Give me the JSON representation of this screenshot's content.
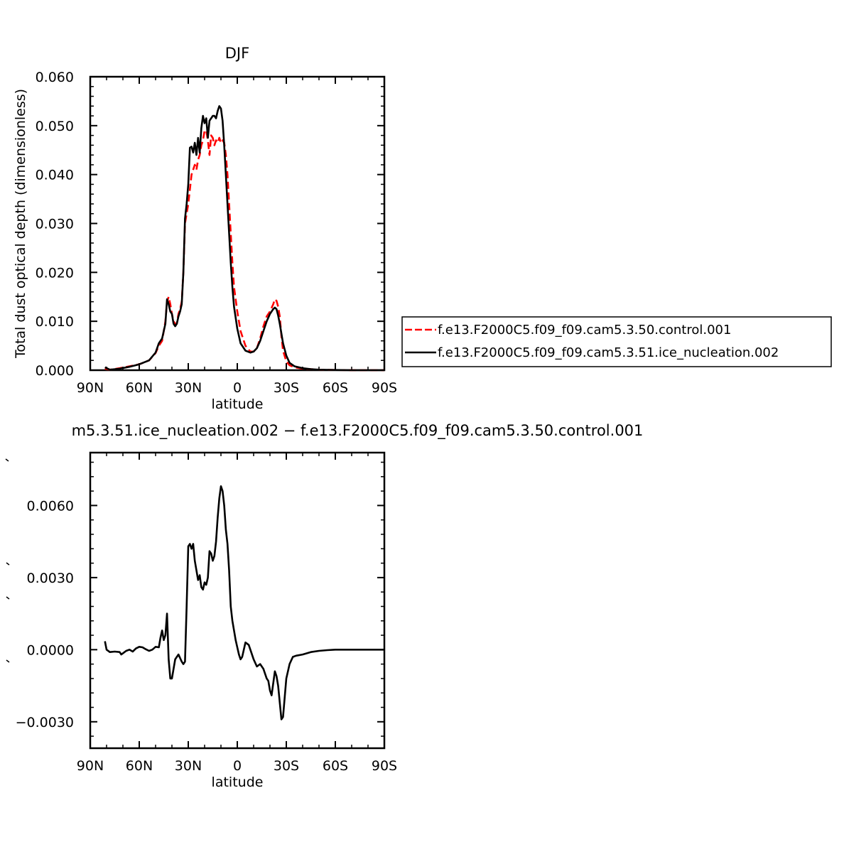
{
  "chart_data": [
    {
      "type": "line",
      "title": "DJF",
      "xlabel": "latitude",
      "ylabel": "Total dust optical depth (dimensionless)",
      "xlim": [
        90,
        -90
      ],
      "ylim": [
        0.0,
        0.06
      ],
      "x_ticks": [
        90,
        60,
        30,
        0,
        -30,
        -60,
        -90
      ],
      "x_tick_labels": [
        "90N",
        "60N",
        "30N",
        "0",
        "30S",
        "60S",
        "90S"
      ],
      "y_ticks": [
        0.0,
        0.01,
        0.02,
        0.03,
        0.04,
        0.05,
        0.06
      ],
      "y_tick_labels": [
        "0.000",
        "0.010",
        "0.020",
        "0.030",
        "0.040",
        "0.050",
        "0.060"
      ],
      "legend_position": "right",
      "series": [
        {
          "name": "f.e13.F2000C5.f09_f09.cam5.3.50.control.001",
          "color": "#ff0000",
          "dash": "dashed",
          "x": [
            81,
            78,
            72,
            66,
            60,
            54,
            50,
            48,
            46,
            44,
            43,
            42,
            41,
            40,
            39,
            38,
            37,
            36,
            35,
            34,
            33,
            32,
            31,
            30,
            28,
            26,
            25,
            24,
            23,
            22,
            21,
            20,
            19,
            18,
            17,
            16,
            15,
            14,
            13,
            12,
            11,
            10,
            9,
            8,
            7,
            6,
            5,
            4,
            3,
            2,
            0,
            -2,
            -5,
            -8,
            -10,
            -12,
            -14,
            -16,
            -18,
            -20,
            -22,
            -23,
            -24,
            -25,
            -26,
            -27,
            -28,
            -30,
            -32,
            -35,
            -40,
            -45,
            -50,
            -60,
            -70,
            -80,
            -90
          ],
          "y": [
            0.0003,
            0.0001,
            0.0004,
            0.0008,
            0.0012,
            0.002,
            0.0035,
            0.005,
            0.006,
            0.01,
            0.014,
            0.015,
            0.0135,
            0.0115,
            0.01,
            0.0095,
            0.0095,
            0.0115,
            0.0125,
            0.014,
            0.02,
            0.03,
            0.032,
            0.034,
            0.04,
            0.042,
            0.041,
            0.043,
            0.044,
            0.046,
            0.047,
            0.049,
            0.049,
            0.047,
            0.044,
            0.048,
            0.0475,
            0.046,
            0.047,
            0.0465,
            0.0475,
            0.0465,
            0.047,
            0.0465,
            0.044,
            0.04,
            0.034,
            0.028,
            0.022,
            0.017,
            0.012,
            0.008,
            0.005,
            0.0038,
            0.0038,
            0.0045,
            0.0065,
            0.009,
            0.011,
            0.012,
            0.0135,
            0.0145,
            0.0142,
            0.013,
            0.011,
            0.007,
            0.004,
            0.0018,
            0.001,
            0.0006,
            0.0003,
            0.0002,
            0.0001,
            5e-05,
            0.0,
            0.0,
            0.0
          ]
        },
        {
          "name": "f.e13.F2000C5.f09_f09.cam5.3.51.ice_nucleation.002",
          "color": "#000000",
          "dash": "solid",
          "x": [
            81,
            78,
            72,
            66,
            60,
            54,
            50,
            48,
            46,
            44,
            43,
            42,
            41,
            40,
            39,
            38,
            37,
            36,
            35,
            34,
            33,
            32,
            31,
            30,
            29,
            28,
            27,
            26,
            25,
            24,
            23,
            22,
            21,
            20,
            19,
            18,
            17,
            16,
            15,
            14,
            13,
            12,
            11,
            10,
            9,
            8,
            7,
            6,
            5,
            4,
            3,
            2,
            0,
            -2,
            -5,
            -8,
            -10,
            -12,
            -14,
            -16,
            -18,
            -20,
            -22,
            -23,
            -24,
            -25,
            -26,
            -27,
            -28,
            -30,
            -32,
            -35,
            -40,
            -45,
            -50,
            -60,
            -70,
            -80,
            -90
          ],
          "y": [
            0.0006,
            0.0001,
            0.0003,
            0.0007,
            0.0012,
            0.002,
            0.0036,
            0.0055,
            0.0065,
            0.0095,
            0.0145,
            0.0135,
            0.012,
            0.0115,
            0.0095,
            0.009,
            0.0095,
            0.011,
            0.012,
            0.0135,
            0.02,
            0.031,
            0.034,
            0.038,
            0.0455,
            0.0457,
            0.0445,
            0.0465,
            0.044,
            0.0475,
            0.0445,
            0.0495,
            0.052,
            0.0505,
            0.0515,
            0.0475,
            0.051,
            0.0515,
            0.052,
            0.052,
            0.0515,
            0.053,
            0.054,
            0.0535,
            0.051,
            0.046,
            0.04,
            0.034,
            0.028,
            0.022,
            0.017,
            0.013,
            0.0085,
            0.0055,
            0.004,
            0.0036,
            0.0038,
            0.0045,
            0.006,
            0.008,
            0.01,
            0.0115,
            0.0125,
            0.0128,
            0.0125,
            0.0112,
            0.0095,
            0.0075,
            0.0055,
            0.003,
            0.0015,
            0.0008,
            0.0004,
            0.0002,
            0.0001,
            5e-05,
            0.0,
            0.0,
            0.0
          ]
        }
      ]
    },
    {
      "type": "line",
      "title": "m5.3.51.ice_nucleation.002 − f.e13.F2000C5.f09_f09.cam5.3.50.control.001",
      "xlabel": "latitude",
      "ylabel": "",
      "xlim": [
        90,
        -90
      ],
      "ylim": [
        -0.0041,
        0.0082
      ],
      "x_ticks": [
        90,
        60,
        30,
        0,
        -30,
        -60,
        -90
      ],
      "x_tick_labels": [
        "90N",
        "60N",
        "30N",
        "0",
        "30S",
        "60S",
        "90S"
      ],
      "y_ticks": [
        -0.003,
        0.0,
        0.003,
        0.006
      ],
      "y_tick_labels": [
        "−0.0030",
        "0.0000",
        "0.0030",
        "0.0060"
      ],
      "series": [
        {
          "color": "#000000",
          "dash": "solid",
          "x": [
            81,
            80,
            78,
            75,
            72,
            71,
            70,
            68,
            66,
            64,
            62,
            60,
            58,
            56,
            54,
            52,
            50,
            48,
            47,
            46,
            45,
            44,
            43,
            42,
            41,
            40,
            39,
            38,
            36,
            34,
            33,
            32,
            31,
            30,
            29,
            28,
            27,
            26,
            25,
            24,
            23,
            22,
            21,
            20,
            19,
            18,
            17,
            16,
            15,
            14,
            13,
            12,
            11,
            10,
            9,
            8,
            7,
            6,
            5,
            4,
            3,
            2,
            1,
            0,
            -1,
            -2,
            -3,
            -5,
            -7,
            -8,
            -10,
            -12,
            -14,
            -16,
            -18,
            -19,
            -20,
            -21,
            -22,
            -23,
            -24,
            -25,
            -26,
            -27,
            -28,
            -29,
            -30,
            -32,
            -34,
            -36,
            -40,
            -45,
            -50,
            -55,
            -60,
            -70,
            -80,
            -90
          ],
          "y": [
            0.00035,
            0.0,
            -0.0001,
            -8e-05,
            -0.0001,
            -0.0002,
            -0.00015,
            -5e-05,
            0.0,
            -8e-05,
            5e-05,
            0.00012,
            0.0001,
            2e-05,
            -5e-05,
            0.0,
            0.00012,
            0.0001,
            0.0005,
            0.0008,
            0.0004,
            0.0006,
            0.0015,
            -0.0004,
            -0.0012,
            -0.0012,
            -0.0008,
            -0.0004,
            -0.0002,
            -0.0005,
            -0.0006,
            -0.0005,
            0.0018,
            0.0043,
            0.0044,
            0.0042,
            0.0044,
            0.0037,
            0.0033,
            0.0029,
            0.0031,
            0.0026,
            0.0025,
            0.0028,
            0.0027,
            0.003,
            0.0041,
            0.004,
            0.0037,
            0.0039,
            0.0045,
            0.0055,
            0.0063,
            0.0068,
            0.0066,
            0.006,
            0.005,
            0.0044,
            0.0033,
            0.0018,
            0.0012,
            0.0008,
            0.0004,
            0.0001,
            -0.0002,
            -0.0004,
            -0.0003,
            0.0003,
            0.0002,
            0.0,
            -0.0004,
            -0.0007,
            -0.0006,
            -0.0008,
            -0.0012,
            -0.0013,
            -0.0017,
            -0.0019,
            -0.0014,
            -0.0009,
            -0.0011,
            -0.0015,
            -0.0022,
            -0.0029,
            -0.0028,
            -0.002,
            -0.0012,
            -0.0006,
            -0.0003,
            -0.00025,
            -0.0002,
            -0.0001,
            -5e-05,
            -2e-05,
            0.0,
            0.0,
            0.0,
            0.0
          ]
        }
      ]
    }
  ]
}
